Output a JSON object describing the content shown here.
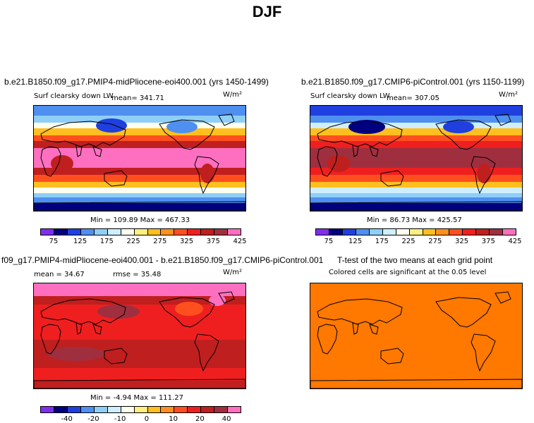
{
  "page_title": "DJF",
  "colors": {
    "abs_scale": [
      "#7f2ef0",
      "#00007f",
      "#1f3fdf",
      "#4f8fef",
      "#8fcff7",
      "#cfefff",
      "#fffff0",
      "#ffef7f",
      "#ffbf1f",
      "#ff8f1f",
      "#ff4f1f",
      "#ef1f1f",
      "#bf1f1f",
      "#9f2f3f",
      "#ff6fbf"
    ],
    "diff_scale": [
      "#7f2ef0",
      "#00007f",
      "#1f3fdf",
      "#4f8fef",
      "#8fcff7",
      "#cfefff",
      "#fffff0",
      "#ffef7f",
      "#ffbf1f",
      "#ff8f1f",
      "#ff4f1f",
      "#ef1f1f",
      "#bf1f1f",
      "#9f2f3f",
      "#ff6fbf"
    ],
    "ttest_fill": "#ff7800"
  },
  "chart_data": [
    {
      "type": "heatmap",
      "title": "b.e21.B1850.f09_g17.PMIP4-midPliocene-eoi400.001 (yrs 1450-1499)",
      "variable": "Surf clearsky down LW",
      "mean_text": "mean= 341.71",
      "units": "W/m²",
      "min": 109.89,
      "max": 467.33,
      "minmax_text": "Min = 109.89 Max = 467.33",
      "colorbar_ticks": [
        "75",
        "125",
        "175",
        "225",
        "275",
        "325",
        "375",
        "425"
      ]
    },
    {
      "type": "heatmap",
      "title": "b.e21.B1850.f09_g17.CMIP6-piControl.001 (yrs 1150-1199)",
      "variable": "Surf clearsky down LW",
      "mean_text": "mean= 307.05",
      "units": "W/m²",
      "min": 86.73,
      "max": 425.57,
      "minmax_text": "Min =  86.73 Max = 425.57",
      "colorbar_ticks": [
        "75",
        "125",
        "175",
        "225",
        "275",
        "325",
        "375",
        "425"
      ]
    },
    {
      "type": "heatmap",
      "title": "f09_g17.PMIP4-midPliocene-eoi400.001 - b.e21.B1850.f09_g17.CMIP6-piControl.001",
      "mean_text": "mean =  34.67",
      "rmse_text": "rmse =  35.48",
      "units": "W/m²",
      "min": -4.94,
      "max": 111.27,
      "minmax_text": "Min =  -4.94 Max = 111.27",
      "colorbar_ticks": [
        "-40",
        "-20",
        "-10",
        "0",
        "10",
        "20",
        "40"
      ]
    },
    {
      "type": "heatmap",
      "title": "T-test of the two means at each grid point",
      "subtitle": "Colored cells are significant at the 0.05 level"
    }
  ]
}
